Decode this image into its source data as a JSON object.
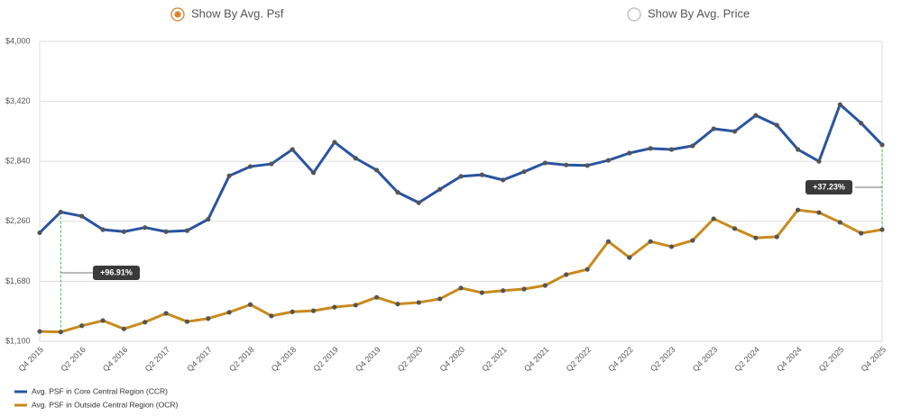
{
  "controls": {
    "options": [
      "Show By Avg. Psf",
      "Show By Avg. Price"
    ],
    "selected": 0
  },
  "chart_data": {
    "type": "line",
    "categories": [
      "Q4 2015",
      null,
      "Q2 2016",
      null,
      "Q4 2016",
      null,
      "Q2 2017",
      null,
      "Q4 2017",
      null,
      "Q2 2018",
      null,
      "Q4 2018",
      null,
      "Q2 2019",
      null,
      "Q4 2019",
      null,
      "Q2 2020",
      null,
      "Q4 2020",
      null,
      "Q2 2021",
      null,
      "Q4 2021",
      null,
      "Q2 2022",
      null,
      "Q4 2022",
      null,
      "Q2 2023",
      null,
      "Q4 2023",
      null,
      "Q2 2024",
      null,
      "Q4 2024",
      null,
      "Q2 2025",
      null,
      "Q4 2025"
    ],
    "series": [
      {
        "name": "Avg. PSF in Core Central Region (CCR)",
        "color": "#2a54a0",
        "values": [
          2150,
          2350,
          2310,
          2180,
          2160,
          2200,
          2160,
          2170,
          2280,
          2700,
          2790,
          2815,
          2955,
          2730,
          3025,
          2870,
          2755,
          2540,
          2440,
          2570,
          2695,
          2710,
          2660,
          2740,
          2825,
          2805,
          2800,
          2850,
          2920,
          2965,
          2955,
          2990,
          3155,
          3130,
          3285,
          3190,
          2955,
          2840,
          3390,
          3210,
          3000
        ]
      },
      {
        "name": "Avg. PSF in Outside Central Region (OCR)",
        "color": "#c98a1e",
        "values": [
          1195,
          1190,
          1250,
          1300,
          1220,
          1285,
          1370,
          1290,
          1320,
          1380,
          1455,
          1345,
          1385,
          1395,
          1430,
          1450,
          1525,
          1460,
          1475,
          1510,
          1615,
          1570,
          1590,
          1605,
          1640,
          1745,
          1795,
          2065,
          1910,
          2065,
          2015,
          2075,
          2285,
          2190,
          2100,
          2110,
          2370,
          2345,
          2250,
          2145,
          2180
        ]
      }
    ],
    "marker_color": "#555555",
    "ylim": [
      1100,
      4000
    ],
    "yticks": [
      {
        "value": 1100,
        "label": "$1,100"
      },
      {
        "value": 1680,
        "label": "$1,680"
      },
      {
        "value": 2260,
        "label": "$2,260"
      },
      {
        "value": 2840,
        "label": "$2,840"
      },
      {
        "value": 3420,
        "label": "$3,420"
      },
      {
        "value": 4000,
        "label": "$4,000"
      }
    ],
    "grid": true,
    "annotations": [
      {
        "text": "+96.91%"
      },
      {
        "text": "+37.23%"
      }
    ],
    "legend": "bottom-left"
  }
}
